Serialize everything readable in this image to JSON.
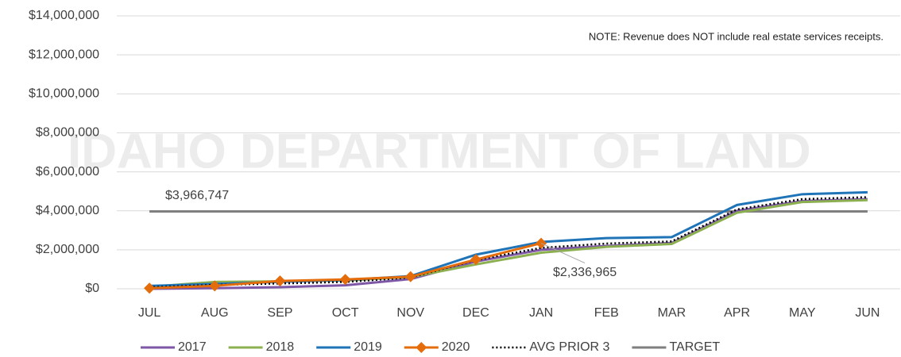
{
  "chart_data": {
    "type": "line",
    "watermark": "IDAHO DEPARTMENT OF LAND",
    "annotations": [
      "NOTE: Revenue does NOT include real estate services receipts."
    ],
    "categories": [
      "JUL",
      "AUG",
      "SEP",
      "OCT",
      "NOV",
      "DEC",
      "JAN",
      "FEB",
      "MAR",
      "APR",
      "MAY",
      "JUN"
    ],
    "ylim": [
      0,
      14000000
    ],
    "yticks": [
      {
        "value": 0,
        "label": "$0"
      },
      {
        "value": 2000000,
        "label": "$2,000,000"
      },
      {
        "value": 4000000,
        "label": "$4,000,000"
      },
      {
        "value": 6000000,
        "label": "$6,000,000"
      },
      {
        "value": 8000000,
        "label": "$8,000,000"
      },
      {
        "value": 10000000,
        "label": "$10,000,000"
      },
      {
        "value": 12000000,
        "label": "$12,000,000"
      },
      {
        "value": 14000000,
        "label": "$14,000,000"
      }
    ],
    "grid": true,
    "legend": "bottom",
    "series": [
      {
        "name": "2017",
        "color": "#7e57a6",
        "values": [
          0,
          30000,
          80000,
          180000,
          500000,
          1400000,
          2000000,
          2200000,
          2350000,
          4000000,
          4500000,
          4600000
        ]
      },
      {
        "name": "2018",
        "color": "#8cb04f",
        "values": [
          100000,
          350000,
          380000,
          420000,
          600000,
          1250000,
          1850000,
          2150000,
          2300000,
          3900000,
          4450000,
          4550000
        ]
      },
      {
        "name": "2019",
        "color": "#1f74b8",
        "values": [
          150000,
          250000,
          350000,
          450000,
          650000,
          1750000,
          2400000,
          2600000,
          2650000,
          4300000,
          4850000,
          4950000
        ]
      },
      {
        "name": "2020",
        "color": "#e46c0a",
        "marker": "diamond",
        "values": [
          30000,
          150000,
          400000,
          480000,
          620000,
          1500000,
          2336965,
          null,
          null,
          null,
          null,
          null
        ],
        "value_labels": [
          null,
          null,
          null,
          null,
          null,
          null,
          "$2,336,965",
          null,
          null,
          null,
          null,
          null
        ]
      },
      {
        "name": "AVG PRIOR 3",
        "color": "#000000",
        "dash": "dotted",
        "values": [
          80000,
          200000,
          270000,
          350000,
          580000,
          1470000,
          2100000,
          2320000,
          2430000,
          4070000,
          4600000,
          4700000
        ]
      },
      {
        "name": "TARGET",
        "color": "#7f7f7f",
        "values": [
          3966747,
          3966747,
          3966747,
          3966747,
          3966747,
          3966747,
          3966747,
          3966747,
          3966747,
          3966747,
          3966747,
          3966747
        ],
        "value_labels": [
          "$3,966,747",
          null,
          null,
          null,
          null,
          null,
          null,
          null,
          null,
          null,
          null,
          null
        ]
      }
    ]
  }
}
